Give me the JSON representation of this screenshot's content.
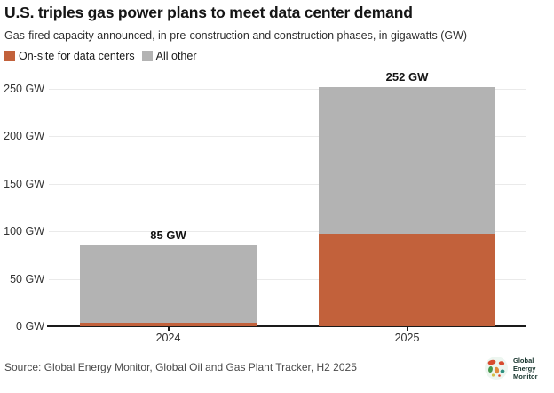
{
  "header": {
    "title": "U.S. triples gas power plans to meet data center demand",
    "subtitle": "Gas-fired capacity announced, in pre-construction and construction phases, in gigawatts (GW)"
  },
  "legend": [
    {
      "label": "On-site for data centers",
      "color": "#c2613b"
    },
    {
      "label": "All other",
      "color": "#b3b3b3"
    }
  ],
  "chart_data": {
    "type": "bar",
    "stacked": true,
    "title": "U.S. triples gas power plans to meet data center demand",
    "subtitle": "Gas-fired capacity announced, in pre-construction and construction phases, in gigawatts (GW)",
    "categories": [
      "2024",
      "2025"
    ],
    "series": [
      {
        "name": "On-site for data centers",
        "color": "#c2613b",
        "values": [
          4,
          97
        ]
      },
      {
        "name": "All other",
        "color": "#b3b3b3",
        "values": [
          81,
          155
        ]
      }
    ],
    "totals": [
      85,
      252
    ],
    "total_labels": [
      "85 GW",
      "252 GW"
    ],
    "yticks": [
      0,
      50,
      100,
      150,
      200,
      250
    ],
    "ytick_labels": [
      "0 GW",
      "50 GW",
      "100 GW",
      "150 GW",
      "200 GW",
      "250 GW"
    ],
    "ylim": [
      0,
      252
    ],
    "xlabel": "",
    "ylabel": "",
    "grid": true,
    "legend_position": "top-left"
  },
  "footer": {
    "source": "Source: Global Energy Monitor, Global Oil and Gas Plant Tracker, H2 2025",
    "logo": {
      "name": "Global Energy Monitor",
      "lines": [
        "Global",
        "Energy",
        "Monitor"
      ],
      "palette": {
        "bg": "#edf6f0",
        "red": "#d84b2f",
        "green": "#46984d",
        "orange": "#e08a3c",
        "teal": "#2d8f7f",
        "yellow": "#cfc04a",
        "text": "#16332c"
      }
    }
  },
  "colors": {
    "accent_orange": "#c2613b",
    "neutral_gray": "#b3b3b3",
    "axis": "#1a1a1a",
    "gridline": "#eaeaea"
  }
}
